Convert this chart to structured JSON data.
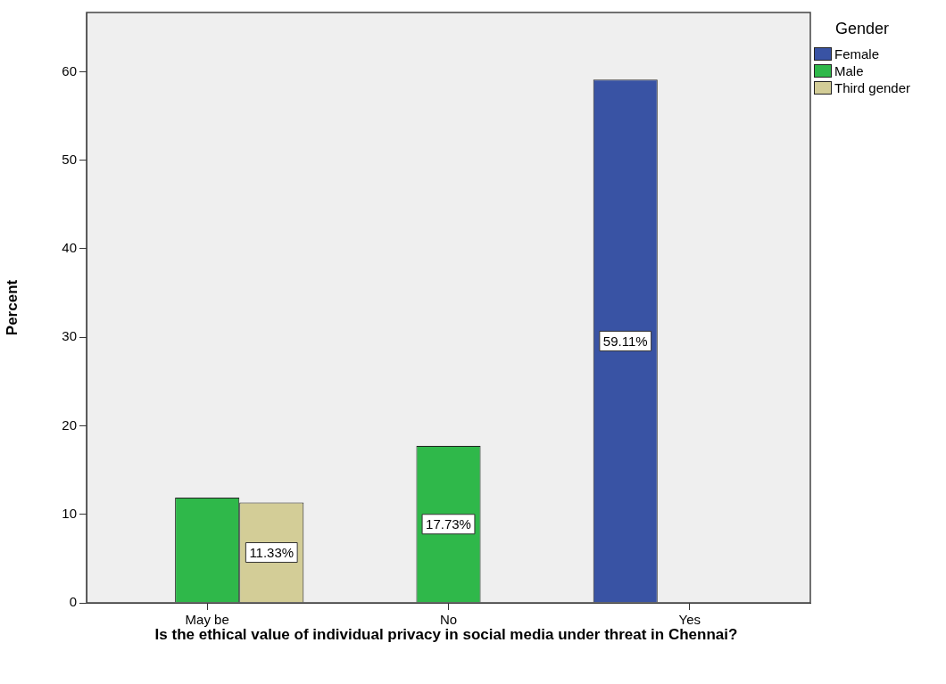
{
  "chart_data": {
    "type": "bar",
    "xlabel": "Is the ethical value of individual privacy in social media under threat in Chennai?",
    "ylabel": "Percent",
    "legend_title": "Gender",
    "legend": "right",
    "grid": false,
    "categories": [
      "May be",
      "No",
      "Yes"
    ],
    "series": [
      {
        "name": "Female",
        "color": "#3953a4",
        "values": [
          null,
          null,
          59.11
        ],
        "value_labels": [
          null,
          null,
          "59.11%"
        ]
      },
      {
        "name": "Male",
        "color": "#2fb84a",
        "values": [
          11.9,
          17.73,
          null
        ],
        "value_labels": [
          null,
          "17.73%",
          null
        ]
      },
      {
        "name": "Third gender",
        "color": "#d3cd97",
        "values": [
          11.33,
          null,
          null
        ],
        "value_labels": [
          "11.33%",
          null,
          null
        ]
      }
    ],
    "ylim": [
      0,
      66.7
    ],
    "yticks": [
      0,
      10,
      20,
      30,
      40,
      50,
      60
    ]
  }
}
